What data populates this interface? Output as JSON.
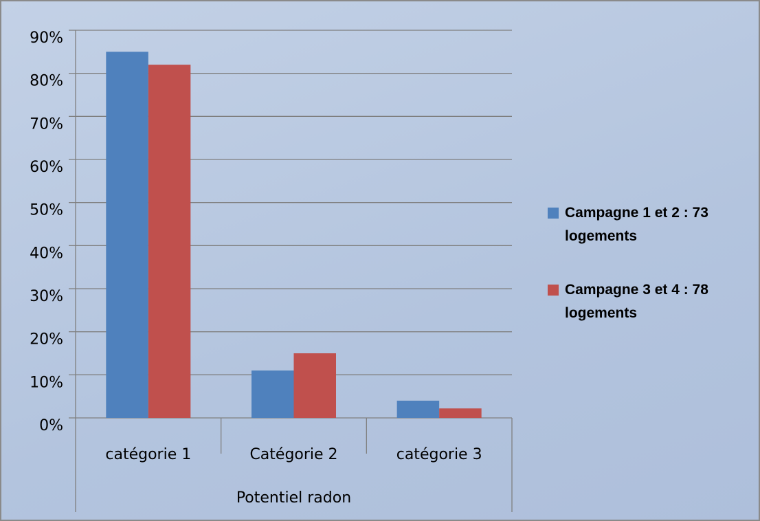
{
  "chart_data": {
    "type": "bar",
    "categories": [
      "catégorie 1",
      "Catégorie 2",
      "catégorie 3"
    ],
    "x_label": "Potentiel radon",
    "series": [
      {
        "name": "Campagne 1 et 2 : 73 logements",
        "color": "#4f81bd",
        "values": [
          85,
          11,
          4
        ]
      },
      {
        "name": "Campagne 3 et 4 : 78 logements",
        "color": "#c0504d",
        "values": [
          82,
          15,
          2.2
        ]
      }
    ],
    "ylim": [
      0,
      90
    ],
    "yticks": [
      {
        "value": 0,
        "label": "0%"
      },
      {
        "value": 10,
        "label": "10%"
      },
      {
        "value": 20,
        "label": "20%"
      },
      {
        "value": 30,
        "label": "30%"
      },
      {
        "value": 40,
        "label": "40%"
      },
      {
        "value": 50,
        "label": "50%"
      },
      {
        "value": 60,
        "label": "60%"
      },
      {
        "value": 70,
        "label": "70%"
      },
      {
        "value": 80,
        "label": "80%"
      },
      {
        "value": 90,
        "label": "90%"
      }
    ],
    "grid": true,
    "legend": "right"
  }
}
